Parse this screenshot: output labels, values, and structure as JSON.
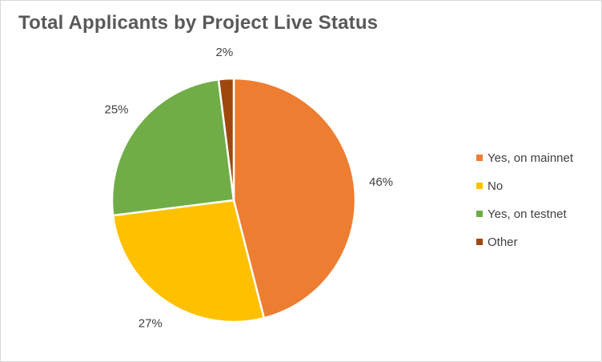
{
  "chart_data": {
    "type": "pie",
    "title": "Total Applicants by Project Live Status",
    "categories": [
      "Yes, on mainnet",
      "No",
      "Yes, on testnet",
      "Other"
    ],
    "values": [
      46,
      27,
      25,
      2
    ],
    "labels": [
      "46%",
      "27%",
      "25%",
      "2%"
    ],
    "colors": [
      "#ED7D31",
      "#FFC000",
      "#70AD47",
      "#9E480E"
    ],
    "legend_position": "right",
    "start_angle": "12 o'clock",
    "direction": "clockwise"
  }
}
